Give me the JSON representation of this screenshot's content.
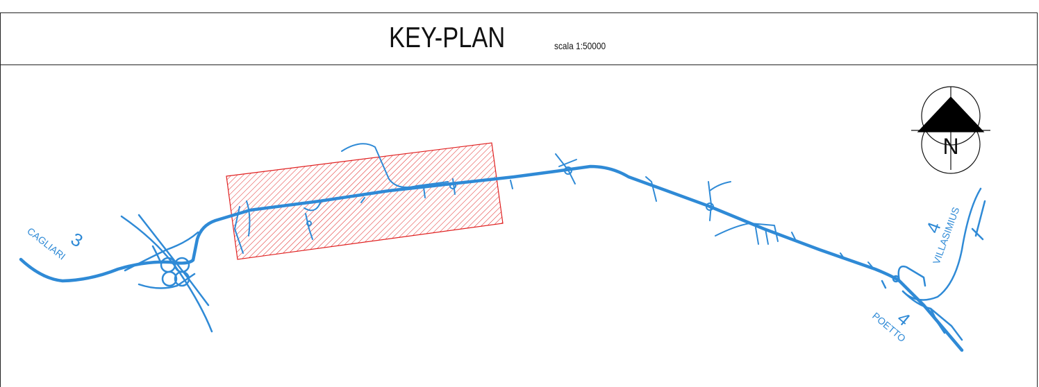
{
  "header": {
    "title": "KEY-PLAN",
    "scale": "scala 1:50000"
  },
  "map": {
    "labels": {
      "cagliari_number": "3",
      "cagliari_name": "CAGLIARI",
      "villasimius_number": "4",
      "villasimius_name": "VILLASIMIUS",
      "poetto_number": "4",
      "poetto_name": "POETTO"
    },
    "compass_letter": "N",
    "colors": {
      "road": "#2f8ad6",
      "highlight_area": "#e02020",
      "frame": "#222222"
    },
    "icons": [
      "north-arrow-icon"
    ]
  }
}
